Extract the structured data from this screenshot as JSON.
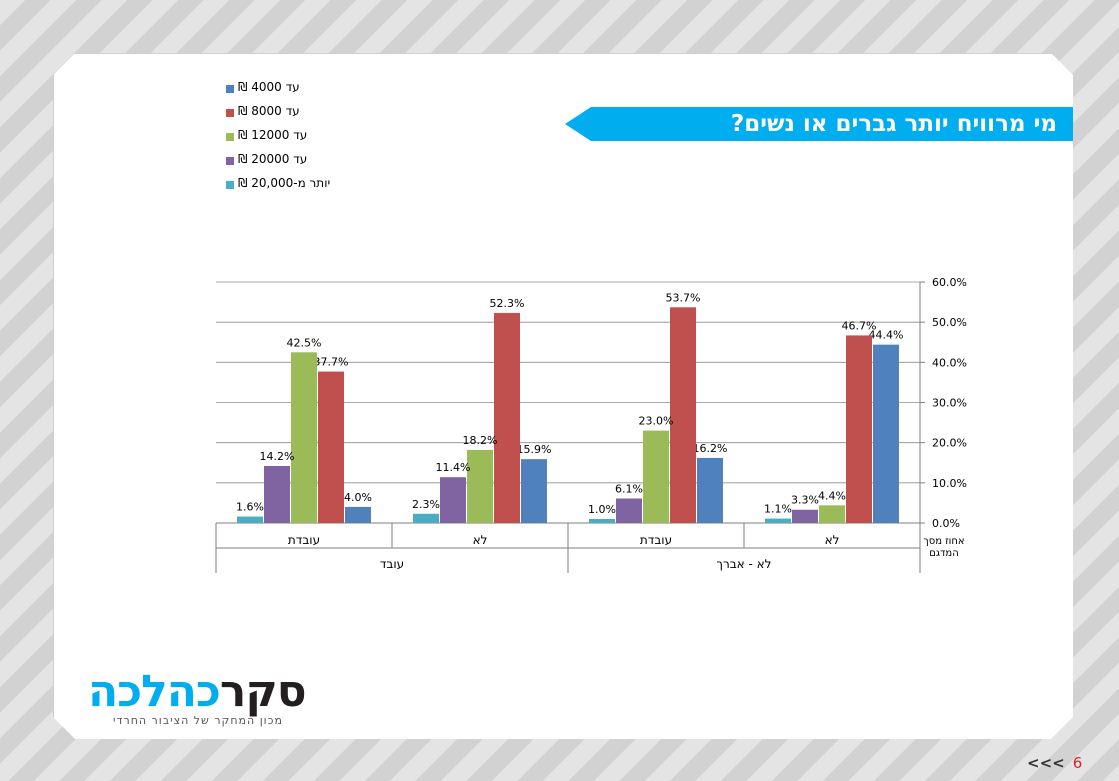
{
  "slide": {
    "title": "מי מרוויח יותר גברים או נשים?",
    "page_number": "6",
    "nav_arrows": "<<<"
  },
  "logo": {
    "text_dark": "סקר",
    "text_blue": "כהלכה",
    "subtitle": "מכון המחקר של הציבור החרדי"
  },
  "colors": {
    "banner": "#00adef",
    "bar_4000": "#4f81bd",
    "bar_8000": "#c0504d",
    "bar_12000": "#9bbb59",
    "bar_20000": "#8064a2",
    "bar_over20000": "#4bacc6"
  },
  "legend": {
    "items": [
      {
        "label": "עד 4000 ₪",
        "color": "#4f81bd"
      },
      {
        "label": "עד 8000 ₪",
        "color": "#c0504d"
      },
      {
        "label": "עד 12000 ₪",
        "color": "#9bbb59"
      },
      {
        "label": "עד 20000 ₪",
        "color": "#8064a2"
      },
      {
        "label": "יותר  מ-20,000 ₪",
        "color": "#4bacc6"
      }
    ]
  },
  "chart_data": {
    "type": "bar",
    "ylim": [
      0,
      60
    ],
    "y_ticks": [
      "0.0%",
      "10.0%",
      "20.0%",
      "30.0%",
      "40.0%",
      "50.0%",
      "60.0%"
    ],
    "ylabel": "אחוז מסך המדגם",
    "grid": true,
    "legend_position": "top-left",
    "categories": [
      "לא",
      "עובדת",
      "לא",
      "עובדת"
    ],
    "groups": [
      {
        "label": "לא - אברך",
        "span": [
          0,
          1
        ]
      },
      {
        "label": "עובד",
        "span": [
          2,
          3
        ]
      }
    ],
    "series": [
      {
        "name": "עד 4000 ₪",
        "values": [
          44.4,
          16.2,
          15.9,
          4.0
        ],
        "labels": [
          "44.4%",
          "16.2%",
          "15.9%",
          "4.0%"
        ]
      },
      {
        "name": "עד 8000 ₪",
        "values": [
          46.7,
          53.7,
          52.3,
          37.7
        ],
        "labels": [
          "46.7%",
          "53.7%",
          "52.3%",
          "37.7%"
        ]
      },
      {
        "name": "עד 12000 ₪",
        "values": [
          4.4,
          23.0,
          18.2,
          42.5
        ],
        "labels": [
          "4.4%",
          "23.0%",
          "18.2%",
          "42.5%"
        ]
      },
      {
        "name": "עד 20000 ₪",
        "values": [
          3.3,
          6.1,
          11.4,
          14.2
        ],
        "labels": [
          "3.3%",
          "6.1%",
          "11.4%",
          "14.2%"
        ]
      },
      {
        "name": "יותר  מ-20,000 ₪",
        "values": [
          1.1,
          1.0,
          2.3,
          1.6
        ],
        "labels": [
          "1.1%",
          "1.0%",
          "2.3%",
          "1.6%"
        ]
      }
    ]
  }
}
